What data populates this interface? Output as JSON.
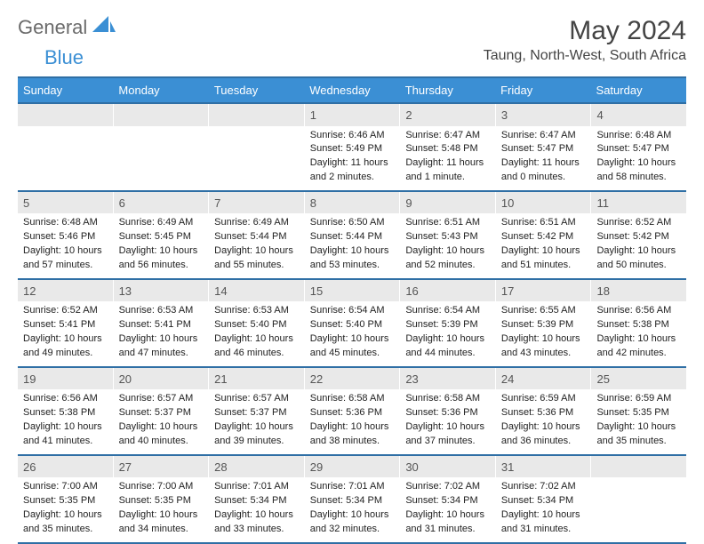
{
  "logo": {
    "text1": "General",
    "text2": "Blue",
    "color_gray": "#6b6b6b",
    "color_blue": "#3b8fd4"
  },
  "title": "May 2024",
  "location": "Taung, North-West, South Africa",
  "header_bg": "#3b8fd4",
  "border_color": "#2f6fa5",
  "daynum_bg": "#e9e9e9",
  "weekdays": [
    "Sunday",
    "Monday",
    "Tuesday",
    "Wednesday",
    "Thursday",
    "Friday",
    "Saturday"
  ],
  "weeks": [
    [
      {
        "n": "",
        "sr": "",
        "ss": "",
        "dl1": "",
        "dl2": ""
      },
      {
        "n": "",
        "sr": "",
        "ss": "",
        "dl1": "",
        "dl2": ""
      },
      {
        "n": "",
        "sr": "",
        "ss": "",
        "dl1": "",
        "dl2": ""
      },
      {
        "n": "1",
        "sr": "Sunrise: 6:46 AM",
        "ss": "Sunset: 5:49 PM",
        "dl1": "Daylight: 11 hours",
        "dl2": "and 2 minutes."
      },
      {
        "n": "2",
        "sr": "Sunrise: 6:47 AM",
        "ss": "Sunset: 5:48 PM",
        "dl1": "Daylight: 11 hours",
        "dl2": "and 1 minute."
      },
      {
        "n": "3",
        "sr": "Sunrise: 6:47 AM",
        "ss": "Sunset: 5:47 PM",
        "dl1": "Daylight: 11 hours",
        "dl2": "and 0 minutes."
      },
      {
        "n": "4",
        "sr": "Sunrise: 6:48 AM",
        "ss": "Sunset: 5:47 PM",
        "dl1": "Daylight: 10 hours",
        "dl2": "and 58 minutes."
      }
    ],
    [
      {
        "n": "5",
        "sr": "Sunrise: 6:48 AM",
        "ss": "Sunset: 5:46 PM",
        "dl1": "Daylight: 10 hours",
        "dl2": "and 57 minutes."
      },
      {
        "n": "6",
        "sr": "Sunrise: 6:49 AM",
        "ss": "Sunset: 5:45 PM",
        "dl1": "Daylight: 10 hours",
        "dl2": "and 56 minutes."
      },
      {
        "n": "7",
        "sr": "Sunrise: 6:49 AM",
        "ss": "Sunset: 5:44 PM",
        "dl1": "Daylight: 10 hours",
        "dl2": "and 55 minutes."
      },
      {
        "n": "8",
        "sr": "Sunrise: 6:50 AM",
        "ss": "Sunset: 5:44 PM",
        "dl1": "Daylight: 10 hours",
        "dl2": "and 53 minutes."
      },
      {
        "n": "9",
        "sr": "Sunrise: 6:51 AM",
        "ss": "Sunset: 5:43 PM",
        "dl1": "Daylight: 10 hours",
        "dl2": "and 52 minutes."
      },
      {
        "n": "10",
        "sr": "Sunrise: 6:51 AM",
        "ss": "Sunset: 5:42 PM",
        "dl1": "Daylight: 10 hours",
        "dl2": "and 51 minutes."
      },
      {
        "n": "11",
        "sr": "Sunrise: 6:52 AM",
        "ss": "Sunset: 5:42 PM",
        "dl1": "Daylight: 10 hours",
        "dl2": "and 50 minutes."
      }
    ],
    [
      {
        "n": "12",
        "sr": "Sunrise: 6:52 AM",
        "ss": "Sunset: 5:41 PM",
        "dl1": "Daylight: 10 hours",
        "dl2": "and 49 minutes."
      },
      {
        "n": "13",
        "sr": "Sunrise: 6:53 AM",
        "ss": "Sunset: 5:41 PM",
        "dl1": "Daylight: 10 hours",
        "dl2": "and 47 minutes."
      },
      {
        "n": "14",
        "sr": "Sunrise: 6:53 AM",
        "ss": "Sunset: 5:40 PM",
        "dl1": "Daylight: 10 hours",
        "dl2": "and 46 minutes."
      },
      {
        "n": "15",
        "sr": "Sunrise: 6:54 AM",
        "ss": "Sunset: 5:40 PM",
        "dl1": "Daylight: 10 hours",
        "dl2": "and 45 minutes."
      },
      {
        "n": "16",
        "sr": "Sunrise: 6:54 AM",
        "ss": "Sunset: 5:39 PM",
        "dl1": "Daylight: 10 hours",
        "dl2": "and 44 minutes."
      },
      {
        "n": "17",
        "sr": "Sunrise: 6:55 AM",
        "ss": "Sunset: 5:39 PM",
        "dl1": "Daylight: 10 hours",
        "dl2": "and 43 minutes."
      },
      {
        "n": "18",
        "sr": "Sunrise: 6:56 AM",
        "ss": "Sunset: 5:38 PM",
        "dl1": "Daylight: 10 hours",
        "dl2": "and 42 minutes."
      }
    ],
    [
      {
        "n": "19",
        "sr": "Sunrise: 6:56 AM",
        "ss": "Sunset: 5:38 PM",
        "dl1": "Daylight: 10 hours",
        "dl2": "and 41 minutes."
      },
      {
        "n": "20",
        "sr": "Sunrise: 6:57 AM",
        "ss": "Sunset: 5:37 PM",
        "dl1": "Daylight: 10 hours",
        "dl2": "and 40 minutes."
      },
      {
        "n": "21",
        "sr": "Sunrise: 6:57 AM",
        "ss": "Sunset: 5:37 PM",
        "dl1": "Daylight: 10 hours",
        "dl2": "and 39 minutes."
      },
      {
        "n": "22",
        "sr": "Sunrise: 6:58 AM",
        "ss": "Sunset: 5:36 PM",
        "dl1": "Daylight: 10 hours",
        "dl2": "and 38 minutes."
      },
      {
        "n": "23",
        "sr": "Sunrise: 6:58 AM",
        "ss": "Sunset: 5:36 PM",
        "dl1": "Daylight: 10 hours",
        "dl2": "and 37 minutes."
      },
      {
        "n": "24",
        "sr": "Sunrise: 6:59 AM",
        "ss": "Sunset: 5:36 PM",
        "dl1": "Daylight: 10 hours",
        "dl2": "and 36 minutes."
      },
      {
        "n": "25",
        "sr": "Sunrise: 6:59 AM",
        "ss": "Sunset: 5:35 PM",
        "dl1": "Daylight: 10 hours",
        "dl2": "and 35 minutes."
      }
    ],
    [
      {
        "n": "26",
        "sr": "Sunrise: 7:00 AM",
        "ss": "Sunset: 5:35 PM",
        "dl1": "Daylight: 10 hours",
        "dl2": "and 35 minutes."
      },
      {
        "n": "27",
        "sr": "Sunrise: 7:00 AM",
        "ss": "Sunset: 5:35 PM",
        "dl1": "Daylight: 10 hours",
        "dl2": "and 34 minutes."
      },
      {
        "n": "28",
        "sr": "Sunrise: 7:01 AM",
        "ss": "Sunset: 5:34 PM",
        "dl1": "Daylight: 10 hours",
        "dl2": "and 33 minutes."
      },
      {
        "n": "29",
        "sr": "Sunrise: 7:01 AM",
        "ss": "Sunset: 5:34 PM",
        "dl1": "Daylight: 10 hours",
        "dl2": "and 32 minutes."
      },
      {
        "n": "30",
        "sr": "Sunrise: 7:02 AM",
        "ss": "Sunset: 5:34 PM",
        "dl1": "Daylight: 10 hours",
        "dl2": "and 31 minutes."
      },
      {
        "n": "31",
        "sr": "Sunrise: 7:02 AM",
        "ss": "Sunset: 5:34 PM",
        "dl1": "Daylight: 10 hours",
        "dl2": "and 31 minutes."
      },
      {
        "n": "",
        "sr": "",
        "ss": "",
        "dl1": "",
        "dl2": ""
      }
    ]
  ]
}
